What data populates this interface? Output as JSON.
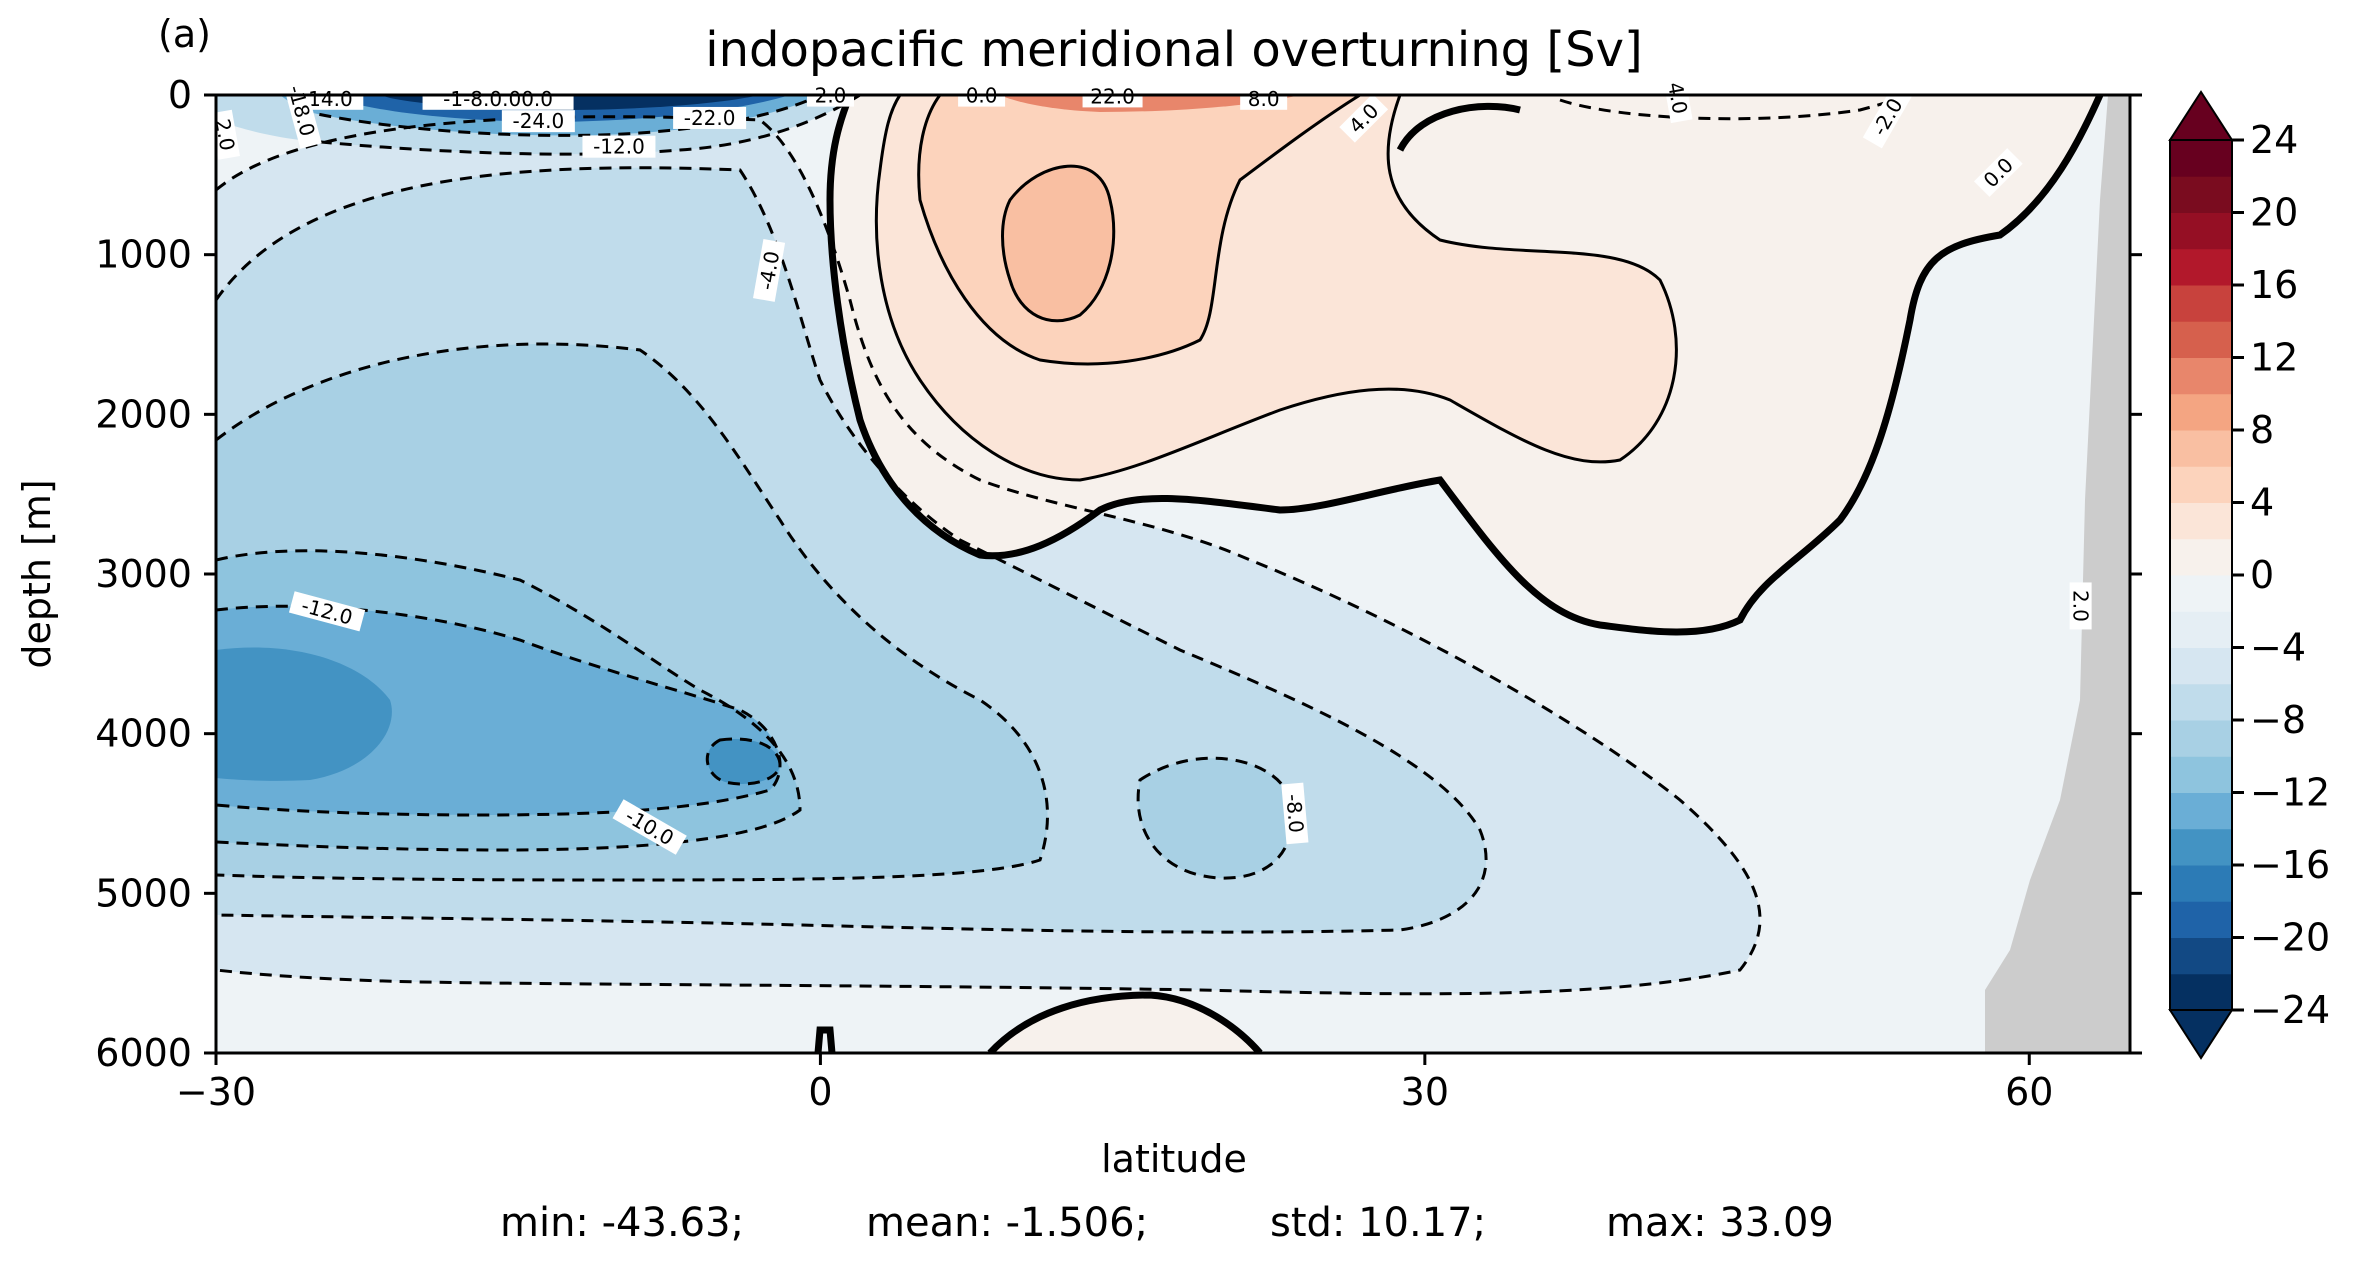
{
  "panel_label": "(a)",
  "chart_data": {
    "type": "heatmap",
    "subtype": "filled-contour",
    "title": "indopacific meridional overturning [Sv]",
    "xlabel": "latitude",
    "ylabel": "depth [m]",
    "xlim": [
      -30,
      65
    ],
    "ylim": [
      6000,
      0
    ],
    "x_ticks": [
      -30,
      0,
      30,
      60
    ],
    "x_tick_labels": [
      "−30",
      "0",
      "30",
      "60"
    ],
    "y_ticks": [
      0,
      1000,
      2000,
      3000,
      4000,
      5000,
      6000
    ],
    "y_tick_labels": [
      "0",
      "1000",
      "2000",
      "3000",
      "4000",
      "5000",
      "6000"
    ],
    "colormap": "RdBu_r",
    "colorbar": {
      "range": [
        -24,
        24
      ],
      "step": 2,
      "extend": "both",
      "ticks": [
        24,
        20,
        16,
        12,
        8,
        4,
        0,
        -4,
        -8,
        -12,
        -16,
        -20,
        -24
      ],
      "tick_labels": [
        "24",
        "20",
        "16",
        "12",
        "8",
        "4",
        "0",
        "−4",
        "−8",
        "−12",
        "−16",
        "−20",
        "−24"
      ],
      "colors": [
        "#053061",
        "#124984",
        "#1f63a8",
        "#2c7bb6",
        "#4393c3",
        "#6aaed6",
        "#8ec4de",
        "#a8d0e4",
        "#c0dceb",
        "#d6e6f1",
        "#e5eef4",
        "#eef3f6",
        "#f7f1ec",
        "#fbe5d8",
        "#fcd3bc",
        "#f9bfa2",
        "#f4a582",
        "#e8866b",
        "#d6604d",
        "#c8423d",
        "#b2182b",
        "#950f24",
        "#7a0c1f",
        "#67001f"
      ]
    },
    "contour_labels": [
      "-14.0",
      "-1-8.0.00.0",
      "-24.0",
      "-22.0",
      "-12.0",
      "-18.0",
      "2.0",
      "0.0",
      "22.0",
      "8.0",
      "4.0",
      "4.0",
      "-2.0",
      "0.0",
      "-4.0",
      "-12.0",
      "-10.0",
      "-8.0",
      "2.0",
      "2.0"
    ],
    "land_mask_color": "#cccccc",
    "stats": {
      "min": "min: -43.63;",
      "mean": "mean: -1.506;",
      "std": "std: 10.17;",
      "max": "max: 33.09"
    }
  }
}
